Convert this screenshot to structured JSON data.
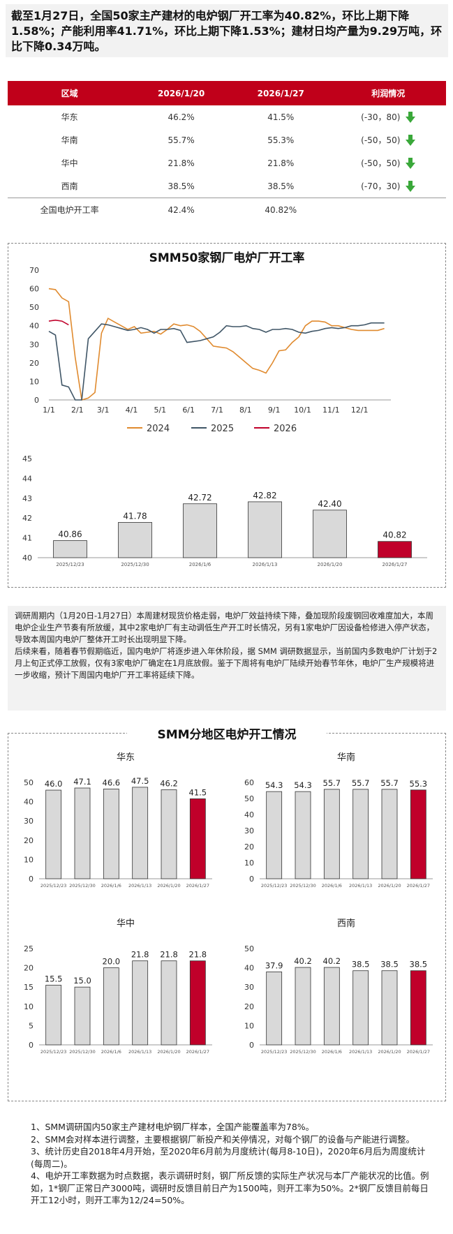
{
  "headline": "截至1月27日，全国50家主产建材的电炉钢厂开工率为40.82%，环比上期下降1.58%；产能利用率41.71%，环比上期下降1.53%；建材日均产量为9.29万吨，环比下降0.34万吨。",
  "table": {
    "headers": [
      "区域",
      "2026/1/20",
      "2026/1/27",
      "利润情况"
    ],
    "rows": [
      {
        "region": "华东",
        "a": "46.2%",
        "b": "41.5%",
        "profit": "(-30，80)",
        "arrow": "down"
      },
      {
        "region": "华南",
        "a": "55.7%",
        "b": "55.3%",
        "profit": "(-50，50)",
        "arrow": "down"
      },
      {
        "region": "华中",
        "a": "21.8%",
        "b": "21.8%",
        "profit": "(-50，50)",
        "arrow": "down"
      },
      {
        "region": "西南",
        "a": "38.5%",
        "b": "38.5%",
        "profit": "(-70，30)",
        "arrow": "down"
      },
      {
        "region": "全国电炉开工率",
        "a": "42.4%",
        "b": "40.82%",
        "profit": "",
        "arrow": ""
      }
    ],
    "arrow_color": "#3aa83a",
    "header_color": "#c0001a"
  },
  "panel1_title": "SMM50家钢厂电炉厂开工率",
  "text_paragraphs": [
    "调研周期内（1月20日-1月27日）本周建材现货价格走弱，电炉厂效益持续下降，叠加现阶段废钢回收难度加大，本周电炉企业生产节奏有所放缓，其中2家电炉厂有主动调低生产开工时长情况，另有1家电炉厂因设备检修进入停产状态，导致本周国内电炉厂整体开工时长出现明显下降。",
    "后续来看，随着春节假期临近，国内电炉厂将逐步进入年休阶段，据 SMM 调研数据显示，当前国内多数电炉厂计划于2月上旬正式停工放假，仅有3家电炉厂确定在1月底放假。鉴于下周将有电炉厂陆续开始春节年休，电炉厂生产规模将进一步收缩，预计下周国内电炉厂开工率将延续下降。"
  ],
  "panel2_title": "SMM分地区电炉开工情况",
  "notes": [
    "1、SMM调研国内50家主产建材电炉钢厂样本，全国产能覆盖率为78%。",
    "2、SMM会对样本进行调整，主要根据钢厂新投产和关停情况，对每个钢厂的设备与产能进行调整。",
    "3、统计历史自2018年4月开始，至2020年6月前为月度统计(每月8-10日)，2020年6月后为周度统计(每周二)。",
    "4、电炉开工率数据为时点数据，表示调研时刻，钢厂所反馈的实际生产状况与本厂产能状况的比值。例如，1*钢厂正常日产3000吨，调研时反馈目前日产为1500吨，则开工率为50%。2*钢厂反馈目前每日开工12小时，则开工率为12/24=50%。"
  ],
  "chart_data": [
    {
      "type": "line",
      "x_ticks": [
        "1/1",
        "2/1",
        "3/1",
        "4/1",
        "5/1",
        "6/1",
        "7/1",
        "8/1",
        "9/1",
        "10/1",
        "11/1",
        "12/1"
      ],
      "ylim": [
        0,
        70
      ],
      "yticks": [
        0,
        10,
        20,
        30,
        40,
        50,
        60,
        70
      ],
      "legend_position": "bottom",
      "series": [
        {
          "name": "2024",
          "color": "#e08a2e",
          "week": [
            1,
            2,
            3,
            4,
            5,
            6,
            7,
            8,
            9,
            10,
            11,
            12,
            13,
            14,
            15,
            16,
            17,
            18,
            19,
            20,
            21,
            22,
            23,
            24,
            25,
            26,
            27,
            28,
            29,
            30,
            31,
            32,
            33,
            34,
            35,
            36,
            37,
            38,
            39,
            40,
            41,
            42,
            43,
            44,
            45,
            46,
            47,
            48,
            49,
            50,
            51,
            52
          ],
          "values": [
            60,
            59.5,
            55,
            53,
            23,
            0,
            1,
            4,
            36,
            44,
            42,
            40,
            38,
            39.5,
            36,
            36.5,
            37,
            35.5,
            38,
            41,
            40,
            40.5,
            39.5,
            37,
            33,
            29,
            28.5,
            28,
            26,
            23,
            20,
            17,
            16,
            14.5,
            20,
            26.5,
            27,
            31,
            34,
            40,
            42.5,
            42.5,
            42,
            40,
            40,
            39,
            38,
            37.5,
            37.5,
            37.5,
            37.5,
            38.5
          ]
        },
        {
          "name": "2025",
          "color": "#3f5566",
          "week": [
            1,
            2,
            3,
            4,
            5,
            6,
            7,
            8,
            9,
            10,
            11,
            12,
            13,
            14,
            15,
            16,
            17,
            18,
            19,
            20,
            21,
            22,
            23,
            24,
            25,
            26,
            27,
            28,
            29,
            30,
            31,
            32,
            33,
            34,
            35,
            36,
            37,
            38,
            39,
            40,
            41,
            42,
            43,
            44,
            45,
            46,
            47,
            48,
            49,
            50,
            51,
            52
          ],
          "values": [
            37,
            35,
            8,
            7,
            0,
            0,
            33,
            37,
            41,
            40.5,
            39.5,
            38.5,
            37.5,
            38,
            39,
            38,
            36,
            38,
            38,
            38.5,
            37.5,
            31,
            31.5,
            32,
            33,
            34,
            36.5,
            40,
            39.5,
            39.5,
            40,
            38.5,
            38,
            36.5,
            38,
            38,
            38.5,
            38,
            36.5,
            36,
            37,
            37.5,
            38.5,
            39,
            38.5,
            39,
            40,
            40,
            40.5,
            41.5,
            41.5,
            41.5
          ]
        },
        {
          "name": "2026",
          "color": "#c0002a",
          "week": [
            1,
            2,
            3,
            4
          ],
          "values": [
            42.5,
            43,
            42.5,
            40.5
          ]
        }
      ]
    },
    {
      "type": "bar",
      "categories": [
        "2025/12/23",
        "2025/12/30",
        "2026/1/6",
        "2026/1/13",
        "2026/1/20",
        "2026/1/27"
      ],
      "values": [
        40.86,
        41.78,
        42.72,
        42.82,
        42.4,
        40.82
      ],
      "value_labels": [
        "40.86",
        "41.78",
        "42.72",
        "42.82",
        "42.40",
        "40.82"
      ],
      "ylim": [
        40,
        45
      ],
      "yticks": [
        40,
        41,
        42,
        43,
        44,
        45
      ],
      "bar_color": "#d9d9d9",
      "highlight_color": "#c0002a"
    },
    {
      "type": "bar",
      "title": "华东",
      "categories": [
        "2025/12/23",
        "2025/12/30",
        "2026/1/6",
        "2026/1/13",
        "2026/1/20",
        "2026/1/27"
      ],
      "values": [
        46.0,
        47.1,
        46.6,
        47.5,
        46.2,
        41.5
      ],
      "value_labels": [
        "46.0",
        "47.1",
        "46.6",
        "47.5",
        "46.2",
        "41.5"
      ],
      "ylim": [
        0,
        50
      ],
      "yticks": [
        0,
        10,
        20,
        30,
        40,
        50
      ]
    },
    {
      "type": "bar",
      "title": "华南",
      "categories": [
        "2025/12/23",
        "2025/12/30",
        "2026/1/6",
        "2026/1/13",
        "2026/1/20",
        "2026/1/27"
      ],
      "values": [
        54.3,
        54.3,
        55.7,
        55.7,
        55.7,
        55.3
      ],
      "value_labels": [
        "54.3",
        "54.3",
        "55.7",
        "55.7",
        "55.7",
        "55.3"
      ],
      "ylim": [
        0,
        60
      ],
      "yticks": [
        0,
        10,
        20,
        30,
        40,
        50,
        60
      ]
    },
    {
      "type": "bar",
      "title": "华中",
      "categories": [
        "2025/12/23",
        "2025/12/30",
        "2026/1/6",
        "2026/1/13",
        "2026/1/20",
        "2026/1/27"
      ],
      "values": [
        15.5,
        15.0,
        20.0,
        21.8,
        21.8,
        21.8
      ],
      "value_labels": [
        "15.5",
        "15.0",
        "20.0",
        "21.8",
        "21.8",
        "21.8"
      ],
      "ylim": [
        0,
        25
      ],
      "yticks": [
        0,
        5,
        10,
        15,
        20,
        25
      ]
    },
    {
      "type": "bar",
      "title": "西南",
      "categories": [
        "2025/12/23",
        "2025/12/30",
        "2026/1/6",
        "2026/1/13",
        "2026/1/20",
        "2026/1/27"
      ],
      "values": [
        37.9,
        40.2,
        40.2,
        38.5,
        38.5,
        38.5
      ],
      "value_labels": [
        "37.9",
        "40.2",
        "40.2",
        "38.5",
        "38.5",
        "38.5"
      ],
      "ylim": [
        0,
        50
      ],
      "yticks": [
        0,
        10,
        20,
        30,
        40,
        50
      ]
    }
  ]
}
